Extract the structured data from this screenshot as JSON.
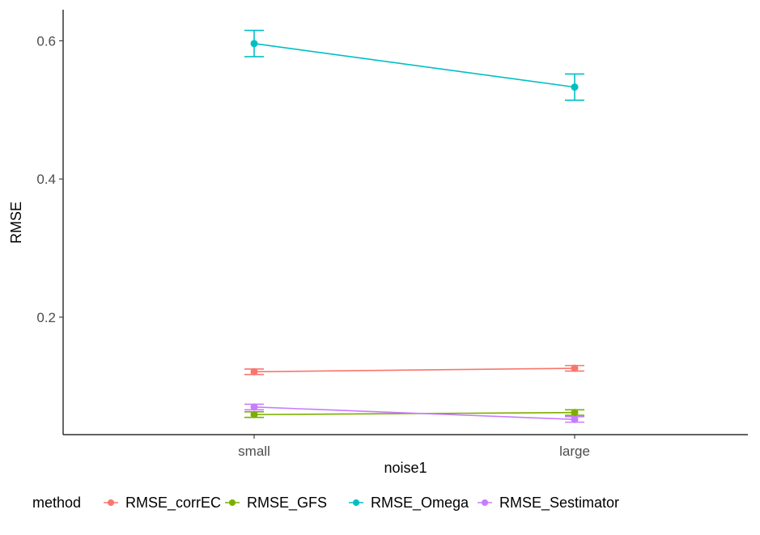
{
  "chart_data": {
    "type": "line",
    "xlabel": "noise1",
    "ylabel": "RMSE",
    "categories": [
      "small",
      "large"
    ],
    "ylim": [
      0.03,
      0.645
    ],
    "yticks": [
      0.2,
      0.4,
      0.6
    ],
    "ytick_labels": [
      "0.2",
      "0.4",
      "0.6"
    ],
    "grid": false,
    "legend": {
      "title": "method",
      "position": "bottom"
    },
    "series": [
      {
        "name": "RMSE_corrEC",
        "color": "#F8766D",
        "values": [
          0.121,
          0.126
        ],
        "err_low": [
          0.117,
          0.122
        ],
        "err_high": [
          0.125,
          0.13
        ]
      },
      {
        "name": "RMSE_GFS",
        "color": "#7CAE00",
        "values": [
          0.059,
          0.062
        ],
        "err_low": [
          0.055,
          0.058
        ],
        "err_high": [
          0.063,
          0.066
        ]
      },
      {
        "name": "RMSE_Omega",
        "color": "#00BFC4",
        "values": [
          0.596,
          0.533
        ],
        "err_low": [
          0.577,
          0.514
        ],
        "err_high": [
          0.615,
          0.552
        ]
      },
      {
        "name": "RMSE_Sestimator",
        "color": "#C77CFF",
        "values": [
          0.07,
          0.052
        ],
        "err_low": [
          0.066,
          0.048
        ],
        "err_high": [
          0.074,
          0.056
        ]
      }
    ]
  }
}
